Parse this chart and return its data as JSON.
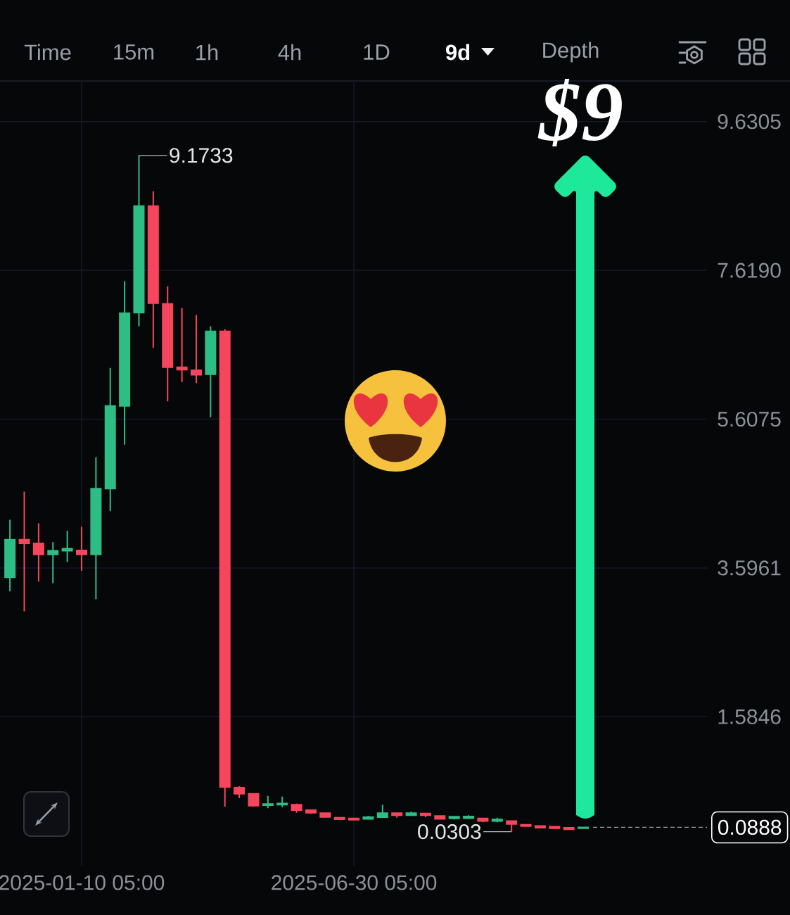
{
  "chart_data": {
    "type": "candlestick",
    "title": "$9",
    "x": [
      "2024-11-26T05:00",
      "2024-12-05T05:00",
      "2024-12-14T05:00",
      "2024-12-23T05:00",
      "2025-01-01T05:00",
      "2025-01-10T05:00",
      "2025-01-19T05:00",
      "2025-01-28T05:00",
      "2025-02-06T05:00",
      "2025-02-15T05:00",
      "2025-02-24T05:00",
      "2025-03-05T05:00",
      "2025-03-14T05:00",
      "2025-03-23T05:00",
      "2025-04-01T05:00",
      "2025-04-10T05:00",
      "2025-04-19T05:00",
      "2025-04-28T05:00",
      "2025-05-07T05:00",
      "2025-05-16T05:00",
      "2025-05-25T05:00",
      "2025-06-03T05:00",
      "2025-06-12T05:00",
      "2025-06-21T05:00",
      "2025-06-30T05:00",
      "2025-07-09T05:00",
      "2025-07-18T05:00",
      "2025-07-27T05:00",
      "2025-08-05T05:00",
      "2025-08-14T05:00",
      "2025-08-23T05:00",
      "2025-09-01T05:00",
      "2025-09-10T05:00",
      "2025-09-19T05:00",
      "2025-09-28T05:00",
      "2025-10-07T05:00",
      "2025-10-16T05:00",
      "2025-10-25T05:00",
      "2025-11-03T05:00",
      "2025-11-12T05:00",
      "2025-11-21T05:00"
    ],
    "ohlc": [
      [
        3.469,
        4.247,
        3.279,
        3.977
      ],
      [
        3.977,
        4.628,
        3.01,
        3.929
      ],
      [
        3.929,
        4.199,
        3.412,
        3.777
      ],
      [
        3.777,
        3.945,
        3.39,
        3.828
      ],
      [
        3.828,
        4.097,
        3.676,
        3.857
      ],
      [
        3.834,
        4.152,
        3.558,
        3.777
      ],
      [
        3.777,
        5.094,
        3.174,
        4.669
      ],
      [
        4.669,
        6.299,
        4.364,
        5.785
      ],
      [
        5.785,
        7.473,
        5.262,
        7.039
      ],
      [
        7.048,
        9.1733,
        6.864,
        8.488
      ],
      [
        8.488,
        8.688,
        6.572,
        7.175
      ],
      [
        7.165,
        7.403,
        5.849,
        6.309
      ],
      [
        6.309,
        7.112,
        6.109,
        6.277
      ],
      [
        6.268,
        7.017,
        6.096,
        6.208
      ],
      [
        6.214,
        6.864,
        5.633,
        6.794
      ],
      [
        6.794,
        6.824,
        0.369,
        0.633
      ],
      [
        0.627,
        0.644,
        0.484,
        0.542
      ],
      [
        0.542,
        0.55,
        0.366,
        0.382
      ],
      [
        0.389,
        0.515,
        0.348,
        0.406
      ],
      [
        0.396,
        0.505,
        0.362,
        0.413
      ],
      [
        0.396,
        0.41,
        0.287,
        0.321
      ],
      [
        0.321,
        0.33,
        0.271,
        0.287
      ],
      [
        0.281,
        0.281,
        0.229,
        0.229
      ],
      [
        0.22,
        0.229,
        0.185,
        0.199
      ],
      [
        0.209,
        0.22,
        0.185,
        0.192
      ],
      [
        0.203,
        0.246,
        0.203,
        0.226
      ],
      [
        0.226,
        0.396,
        0.22,
        0.281
      ],
      [
        0.281,
        0.29,
        0.22,
        0.253
      ],
      [
        0.253,
        0.301,
        0.246,
        0.281
      ],
      [
        0.277,
        0.281,
        0.226,
        0.253
      ],
      [
        0.243,
        0.25,
        0.195,
        0.203
      ],
      [
        0.209,
        0.243,
        0.195,
        0.233
      ],
      [
        0.213,
        0.253,
        0.2,
        0.237
      ],
      [
        0.209,
        0.215,
        0.158,
        0.175
      ],
      [
        0.175,
        0.22,
        0.158,
        0.196
      ],
      [
        0.175,
        0.18,
        0.0303,
        0.134
      ],
      [
        0.125,
        0.125,
        0.104,
        0.104
      ],
      [
        0.108,
        0.108,
        0.084,
        0.084
      ],
      [
        0.097,
        0.097,
        0.077,
        0.077
      ],
      [
        0.084,
        0.084,
        0.063,
        0.063
      ],
      [
        0.077,
        0.0888,
        0.077,
        0.0888
      ]
    ],
    "colors": [
      "#2ebd85",
      "#f6465d",
      "#f6465d",
      "#2ebd85",
      "#2ebd85",
      "#f6465d",
      "#2ebd85",
      "#2ebd85",
      "#2ebd85",
      "#2ebd85",
      "#f6465d",
      "#f6465d",
      "#f6465d",
      "#f6465d",
      "#2ebd85",
      "#f6465d",
      "#f6465d",
      "#f6465d",
      "#2ebd85",
      "#2ebd85",
      "#f6465d",
      "#f6465d",
      "#f6465d",
      "#f6465d",
      "#f6465d",
      "#2ebd85",
      "#2ebd85",
      "#f6465d",
      "#2ebd85",
      "#f6465d",
      "#f6465d",
      "#2ebd85",
      "#2ebd85",
      "#f6465d",
      "#2ebd85",
      "#f6465d",
      "#f6465d",
      "#f6465d",
      "#f6465d",
      "#f6465d",
      "#2ebd85"
    ],
    "xlim": [
      "2024-11-19T23:00",
      "2026-02-06T23:00"
    ],
    "xticks": [
      {
        "value": "2025-01-10T05:00",
        "label": "2025-01-10 05:00"
      },
      {
        "value": "2025-06-30T05:00",
        "label": "2025-06-30 05:00"
      }
    ],
    "ylim": [
      -0.43,
      10.18
    ],
    "yticks": [
      1.5846,
      3.5961,
      5.6075,
      {
        "value": 7.619,
        "label": "7.6190"
      },
      9.6305
    ],
    "grid": true,
    "ref_lines": [
      {
        "axis": "y",
        "value": 0.0888,
        "label": "0.0888",
        "line_style": "dashed",
        "color": "#9a9ca3"
      }
    ],
    "annotations": [
      "Time",
      "15m",
      "1h",
      "4h",
      "1D",
      "9d",
      "Depth",
      {
        "text": "9.1733",
        "x": "2025-02-15T05:00",
        "y": 9.1733
      },
      {
        "text": "0.0303",
        "x": "2025-10-07T05:00",
        "y": 0.0303
      }
    ]
  }
}
